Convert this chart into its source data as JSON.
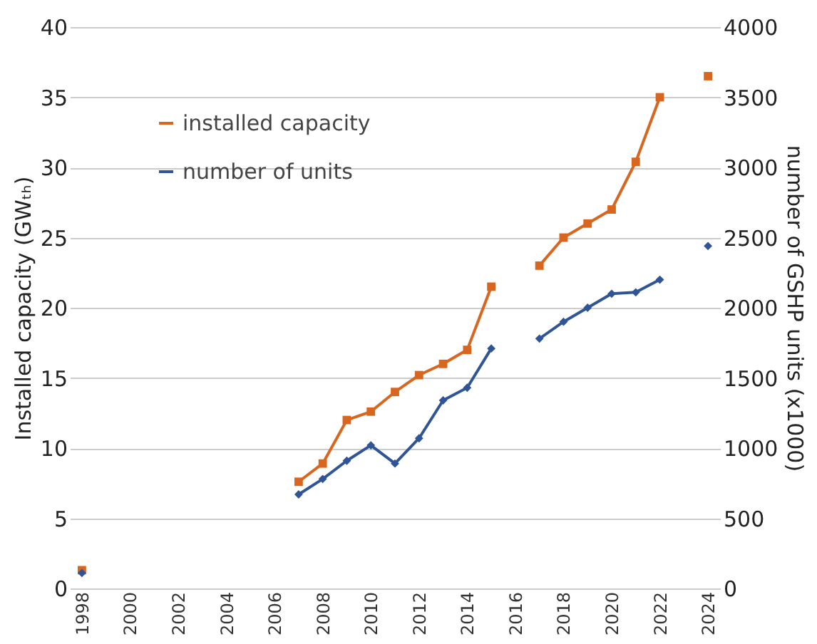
{
  "chart_data": {
    "type": "line",
    "ylabel": "Installed capacity (GWₜₕ)",
    "y2label": "number of GSHP units (x1000)",
    "x": [
      1998,
      1999,
      2000,
      2001,
      2002,
      2003,
      2004,
      2005,
      2006,
      2007,
      2008,
      2009,
      2010,
      2011,
      2012,
      2013,
      2014,
      2015,
      2016,
      2017,
      2018,
      2019,
      2020,
      2021,
      2022,
      2023,
      2024
    ],
    "xlim": [
      1997.5,
      2024.5
    ],
    "xticks": [
      1998,
      2000,
      2002,
      2004,
      2006,
      2008,
      2010,
      2012,
      2014,
      2016,
      2018,
      2020,
      2022,
      2024
    ],
    "ylim": [
      0,
      40
    ],
    "yticks": [
      0,
      5,
      10,
      15,
      20,
      25,
      30,
      35,
      40
    ],
    "y2lim": [
      0,
      4000
    ],
    "y2ticks": [
      0,
      500,
      1000,
      1500,
      2000,
      2500,
      3000,
      3500,
      4000
    ],
    "grid": "y",
    "legend": "top left",
    "series": [
      {
        "name": "installed capacity",
        "color": "#d9661f",
        "marker": "square",
        "values": [
          1.3,
          null,
          null,
          null,
          null,
          null,
          null,
          null,
          null,
          7.6,
          8.9,
          12.0,
          12.6,
          14.0,
          15.2,
          16.0,
          17.0,
          21.5,
          null,
          23.0,
          25.0,
          26.0,
          27.0,
          30.4,
          35.0,
          null,
          36.5
        ]
      },
      {
        "name": "number of units",
        "color": "#2f5597",
        "marker": "diamond",
        "axis": "y2",
        "values": [
          110,
          null,
          null,
          null,
          null,
          null,
          null,
          null,
          null,
          670,
          780,
          910,
          1020,
          890,
          1070,
          1340,
          1430,
          1710,
          null,
          1780,
          1900,
          2000,
          2100,
          2110,
          2200,
          null,
          2440
        ]
      }
    ]
  }
}
